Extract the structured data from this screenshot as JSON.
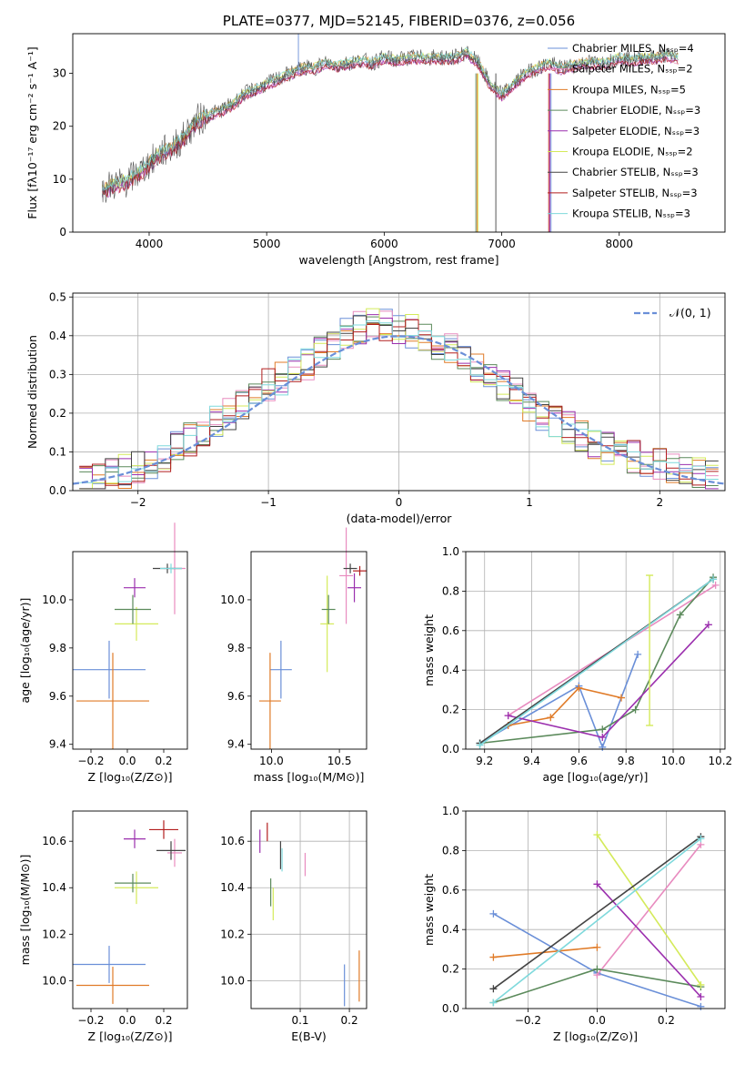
{
  "chart_data": [
    {
      "id": "spectrum",
      "type": "line",
      "title": "PLATE=0377, MJD=52145, FIBERID=0376, z=0.056",
      "xlabel": "wavelength [Angstrom, rest frame]",
      "ylabel": "Flux [fλ10⁻¹⁷ erg cm⁻² s⁻¹ A⁻¹]",
      "xlim": [
        3350,
        8900
      ],
      "ylim": [
        0,
        37.5
      ],
      "xticks": [
        4000,
        5000,
        6000,
        7000,
        8000
      ],
      "yticks": [
        0,
        10,
        20,
        30
      ],
      "legend_position": "top-right",
      "series": [
        {
          "name": "Chabrier MILES, Nₛₛₚ=4",
          "color": "#6a8fd8"
        },
        {
          "name": "Salpeter MILES, Nₛₛₚ=2",
          "color": "#e88bbf"
        },
        {
          "name": "Kroupa MILES, Nₛₛₚ=5",
          "color": "#e07b28"
        },
        {
          "name": "Chabrier ELODIE, Nₛₛₚ=3",
          "color": "#5b8a5b"
        },
        {
          "name": "Salpeter ELODIE, Nₛₛₚ=3",
          "color": "#9b2fae"
        },
        {
          "name": "Kroupa ELODIE, Nₛₛₚ=2",
          "color": "#d4ea5a"
        },
        {
          "name": "Chabrier STELIB, Nₛₛₚ=3",
          "color": "#444444"
        },
        {
          "name": "Salpeter STELIB, Nₛₛₚ=3",
          "color": "#b21e1e"
        },
        {
          "name": "Kroupa STELIB, Nₛₛₚ=3",
          "color": "#7fd9dc"
        }
      ],
      "data_wavelength": [
        3600,
        3700,
        3800,
        3900,
        4000,
        4100,
        4200,
        4300,
        4400,
        4500,
        4600,
        4700,
        4800,
        4900,
        5000,
        5100,
        5200,
        5300,
        5400,
        5500,
        5600,
        5700,
        5800,
        5900,
        6000,
        6100,
        6200,
        6300,
        6400,
        6500,
        6600,
        6700,
        6800,
        6900,
        7000,
        7100,
        7200,
        7300,
        7400,
        7500,
        7600,
        7700,
        7800,
        7900,
        8000,
        8100,
        8200,
        8300,
        8400,
        8500
      ],
      "data_flux": [
        8,
        9,
        9.5,
        11,
        13,
        15,
        16,
        18,
        21,
        22,
        23,
        24,
        26,
        27,
        28,
        29,
        30,
        31,
        31,
        32,
        31.5,
        32,
        32.5,
        32,
        33,
        32.5,
        33,
        33,
        33,
        33,
        33,
        34,
        32,
        28,
        26,
        28,
        30,
        31,
        32,
        31,
        31.5,
        32,
        32,
        32,
        33,
        32.5,
        33,
        33,
        33.5,
        33
      ]
    },
    {
      "id": "residuals",
      "type": "line",
      "xlabel": "(data-model)/error",
      "ylabel": "Normed distribution",
      "xlim": [
        -2.5,
        2.5
      ],
      "ylim": [
        0,
        0.51
      ],
      "xticks": [
        -2,
        -1,
        0,
        1,
        2
      ],
      "yticks": [
        0.0,
        0.1,
        0.2,
        0.3,
        0.4,
        0.5
      ],
      "grid": true,
      "legend_position": "top-right",
      "legend": "𝒩(0, 1)",
      "normal_color": "#6a8fd8",
      "bins_center": [
        -2.4,
        -2.3,
        -2.2,
        -2.1,
        -2.0,
        -1.9,
        -1.8,
        -1.7,
        -1.6,
        -1.5,
        -1.4,
        -1.3,
        -1.2,
        -1.1,
        -1.0,
        -0.9,
        -0.8,
        -0.7,
        -0.6,
        -0.5,
        -0.4,
        -0.3,
        -0.2,
        -0.1,
        0.0,
        0.1,
        0.2,
        0.3,
        0.4,
        0.5,
        0.6,
        0.7,
        0.8,
        0.9,
        1.0,
        1.1,
        1.2,
        1.3,
        1.4,
        1.5,
        1.6,
        1.7,
        1.8,
        1.9,
        2.0,
        2.1,
        2.2,
        2.3,
        2.4
      ],
      "histogram_density": [
        0.02,
        0.03,
        0.04,
        0.05,
        0.06,
        0.07,
        0.09,
        0.11,
        0.13,
        0.15,
        0.18,
        0.2,
        0.22,
        0.25,
        0.27,
        0.29,
        0.31,
        0.33,
        0.36,
        0.38,
        0.4,
        0.42,
        0.44,
        0.43,
        0.42,
        0.41,
        0.4,
        0.38,
        0.36,
        0.34,
        0.31,
        0.29,
        0.27,
        0.25,
        0.22,
        0.2,
        0.18,
        0.16,
        0.14,
        0.12,
        0.11,
        0.1,
        0.09,
        0.08,
        0.07,
        0.06,
        0.05,
        0.05,
        0.04
      ]
    },
    {
      "id": "age_vs_Z",
      "type": "scatter",
      "xlabel": "Z [log₁₀(Z/Z⊙)]",
      "ylabel": "age  [log₁₀(age/yr)]",
      "xlim": [
        -0.3,
        0.33
      ],
      "ylim": [
        9.38,
        10.2
      ],
      "xticks": [
        -0.2,
        0.0,
        0.2
      ],
      "yticks": [
        9.4,
        9.6,
        9.8,
        10.0
      ],
      "points": [
        {
          "x": -0.1,
          "y": 9.71,
          "xerr": 0.2,
          "yerr": 0.12,
          "color": "#6a8fd8"
        },
        {
          "x": -0.08,
          "y": 9.58,
          "xerr": 0.2,
          "yerr": 0.2,
          "color": "#e07b28"
        },
        {
          "x": 0.26,
          "y": 10.13,
          "xerr": 0.06,
          "yerr": 0.19,
          "color": "#e88bbf"
        },
        {
          "x": 0.05,
          "y": 9.9,
          "xerr": 0.12,
          "yerr": 0.07,
          "color": "#d4ea5a"
        },
        {
          "x": 0.04,
          "y": 10.05,
          "xerr": 0.06,
          "yerr": 0.04,
          "color": "#9b2fae"
        },
        {
          "x": 0.03,
          "y": 9.96,
          "xerr": 0.1,
          "yerr": 0.06,
          "color": "#5b8a5b"
        },
        {
          "x": 0.22,
          "y": 10.13,
          "xerr": 0.08,
          "yerr": 0.02,
          "color": "#444444"
        },
        {
          "x": 0.24,
          "y": 10.13,
          "xerr": 0.06,
          "yerr": 0.02,
          "color": "#7fd9dc"
        }
      ]
    },
    {
      "id": "age_vs_mass",
      "type": "scatter",
      "xlabel": "mass [log₁₀(M/M⊙)]",
      "ylabel": "",
      "xlim": [
        9.85,
        10.7
      ],
      "ylim": [
        9.38,
        10.2
      ],
      "xticks": [
        10.0,
        10.5
      ],
      "yticks": [
        9.4,
        9.6,
        9.8,
        10.0
      ],
      "points": [
        {
          "x": 10.07,
          "y": 9.71,
          "xerr": 0.08,
          "yerr": 0.12,
          "color": "#6a8fd8"
        },
        {
          "x": 9.99,
          "y": 9.58,
          "xerr": 0.08,
          "yerr": 0.2,
          "color": "#e07b28"
        },
        {
          "x": 10.55,
          "y": 10.1,
          "xerr": 0.05,
          "yerr": 0.2,
          "color": "#e88bbf"
        },
        {
          "x": 10.41,
          "y": 9.9,
          "xerr": 0.05,
          "yerr": 0.2,
          "color": "#d4ea5a"
        },
        {
          "x": 10.61,
          "y": 10.05,
          "xerr": 0.05,
          "yerr": 0.06,
          "color": "#9b2fae"
        },
        {
          "x": 10.42,
          "y": 9.96,
          "xerr": 0.05,
          "yerr": 0.06,
          "color": "#5b8a5b"
        },
        {
          "x": 10.58,
          "y": 10.13,
          "xerr": 0.05,
          "yerr": 0.02,
          "color": "#444444"
        },
        {
          "x": 10.65,
          "y": 10.12,
          "xerr": 0.05,
          "yerr": 0.02,
          "color": "#b21e1e"
        }
      ]
    },
    {
      "id": "massweight_vs_age",
      "type": "line",
      "xlabel": "age  [log₁₀(age/yr)]",
      "ylabel": "mass weight",
      "xlim": [
        9.12,
        10.22
      ],
      "ylim": [
        0.0,
        1.0
      ],
      "xticks": [
        9.2,
        9.4,
        9.6,
        9.8,
        10.0,
        10.2
      ],
      "yticks": [
        0.0,
        0.2,
        0.4,
        0.6,
        0.8,
        1.0
      ],
      "grid": true,
      "series": [
        {
          "color": "#6a8fd8",
          "x": [
            9.18,
            9.6,
            9.7,
            9.85
          ],
          "y": [
            0.03,
            0.32,
            0.01,
            0.48
          ]
        },
        {
          "color": "#e07b28",
          "x": [
            9.3,
            9.48,
            9.6,
            9.78
          ],
          "y": [
            0.12,
            0.16,
            0.31,
            0.26
          ]
        },
        {
          "color": "#e88bbf",
          "x": [
            9.3,
            10.18
          ],
          "y": [
            0.17,
            0.83
          ]
        },
        {
          "color": "#5b8a5b",
          "x": [
            9.18,
            9.7,
            9.84,
            10.03,
            10.17
          ],
          "y": [
            0.03,
            0.1,
            0.2,
            0.68,
            0.87
          ]
        },
        {
          "color": "#9b2fae",
          "x": [
            9.3,
            9.7,
            10.15
          ],
          "y": [
            0.17,
            0.06,
            0.63
          ]
        },
        {
          "color": "#444444",
          "x": [
            9.18,
            10.17
          ],
          "y": [
            0.03,
            0.86
          ]
        },
        {
          "color": "#7fd9dc",
          "x": [
            9.18,
            10.17
          ],
          "y": [
            0.02,
            0.86
          ]
        }
      ],
      "errorbar": {
        "x": 9.9,
        "y": 0.5,
        "yerr": 0.38,
        "color": "#d4ea5a"
      }
    },
    {
      "id": "mass_vs_Z",
      "type": "scatter",
      "xlabel": "Z [log₁₀(Z/Z⊙)]",
      "ylabel": "mass [log₁₀(M/M⊙)]",
      "xlim": [
        -0.3,
        0.33
      ],
      "ylim": [
        9.88,
        10.73
      ],
      "xticks": [
        -0.2,
        0.0,
        0.2
      ],
      "yticks": [
        10.0,
        10.2,
        10.4,
        10.6
      ],
      "points": [
        {
          "x": -0.1,
          "y": 10.07,
          "xerr": 0.2,
          "yerr": 0.08,
          "color": "#6a8fd8"
        },
        {
          "x": -0.08,
          "y": 9.98,
          "xerr": 0.2,
          "yerr": 0.08,
          "color": "#e07b28"
        },
        {
          "x": 0.26,
          "y": 10.55,
          "xerr": 0.04,
          "yerr": 0.06,
          "color": "#e88bbf"
        },
        {
          "x": 0.05,
          "y": 10.4,
          "xerr": 0.12,
          "yerr": 0.07,
          "color": "#d4ea5a"
        },
        {
          "x": 0.04,
          "y": 10.61,
          "xerr": 0.06,
          "yerr": 0.04,
          "color": "#9b2fae"
        },
        {
          "x": 0.03,
          "y": 10.42,
          "xerr": 0.1,
          "yerr": 0.04,
          "color": "#5b8a5b"
        },
        {
          "x": 0.24,
          "y": 10.56,
          "xerr": 0.08,
          "yerr": 0.04,
          "color": "#444444"
        },
        {
          "x": 0.2,
          "y": 10.65,
          "xerr": 0.08,
          "yerr": 0.04,
          "color": "#b21e1e"
        }
      ]
    },
    {
      "id": "mass_vs_EBV",
      "type": "scatter",
      "xlabel": "E(B-V)",
      "ylabel": "",
      "xlim": [
        0.0,
        0.235
      ],
      "ylim": [
        9.88,
        10.73
      ],
      "xticks": [
        0.1,
        0.2
      ],
      "yticks": [
        10.0,
        10.2,
        10.4,
        10.6
      ],
      "grid": true,
      "points": [
        {
          "x": 0.19,
          "y": 9.98,
          "yerr": 0.09,
          "color": "#6a8fd8"
        },
        {
          "x": 0.22,
          "y": 10.02,
          "yerr": 0.11,
          "color": "#e07b28"
        },
        {
          "x": 0.11,
          "y": 10.5,
          "yerr": 0.05,
          "color": "#e88bbf"
        },
        {
          "x": 0.045,
          "y": 10.33,
          "yerr": 0.07,
          "color": "#d4ea5a"
        },
        {
          "x": 0.018,
          "y": 10.6,
          "yerr": 0.05,
          "color": "#9b2fae"
        },
        {
          "x": 0.04,
          "y": 10.38,
          "yerr": 0.06,
          "color": "#5b8a5b"
        },
        {
          "x": 0.06,
          "y": 10.54,
          "yerr": 0.06,
          "color": "#444444"
        },
        {
          "x": 0.033,
          "y": 10.64,
          "yerr": 0.04,
          "color": "#b21e1e"
        },
        {
          "x": 0.063,
          "y": 10.52,
          "yerr": 0.05,
          "color": "#7fd9dc"
        }
      ]
    },
    {
      "id": "massweight_vs_Z",
      "type": "line",
      "xlabel": "Z [log₁₀(Z/Z⊙)]",
      "ylabel": "mass weight",
      "xlim": [
        -0.38,
        0.37
      ],
      "ylim": [
        0.0,
        1.0
      ],
      "xticks": [
        -0.2,
        0.0,
        0.2
      ],
      "yticks": [
        0.0,
        0.2,
        0.4,
        0.6,
        0.8,
        1.0
      ],
      "grid": true,
      "series": [
        {
          "color": "#6a8fd8",
          "x": [
            -0.3,
            0.0,
            0.3
          ],
          "y": [
            0.48,
            0.18,
            0.01
          ]
        },
        {
          "color": "#e07b28",
          "x": [
            -0.3,
            0.0
          ],
          "y": [
            0.26,
            0.31
          ]
        },
        {
          "color": "#e88bbf",
          "x": [
            0.0,
            0.3
          ],
          "y": [
            0.17,
            0.83
          ]
        },
        {
          "color": "#5b8a5b",
          "x": [
            -0.3,
            0.0,
            0.3
          ],
          "y": [
            0.03,
            0.2,
            0.11
          ]
        },
        {
          "color": "#9b2fae",
          "x": [
            0.0,
            0.3
          ],
          "y": [
            0.63,
            0.06
          ]
        },
        {
          "color": "#d4ea5a",
          "x": [
            0.0,
            0.3
          ],
          "y": [
            0.88,
            0.12
          ]
        },
        {
          "color": "#444444",
          "x": [
            -0.3,
            0.3
          ],
          "y": [
            0.1,
            0.87
          ]
        },
        {
          "color": "#7fd9dc",
          "x": [
            -0.3,
            0.3
          ],
          "y": [
            0.03,
            0.86
          ]
        }
      ]
    }
  ]
}
